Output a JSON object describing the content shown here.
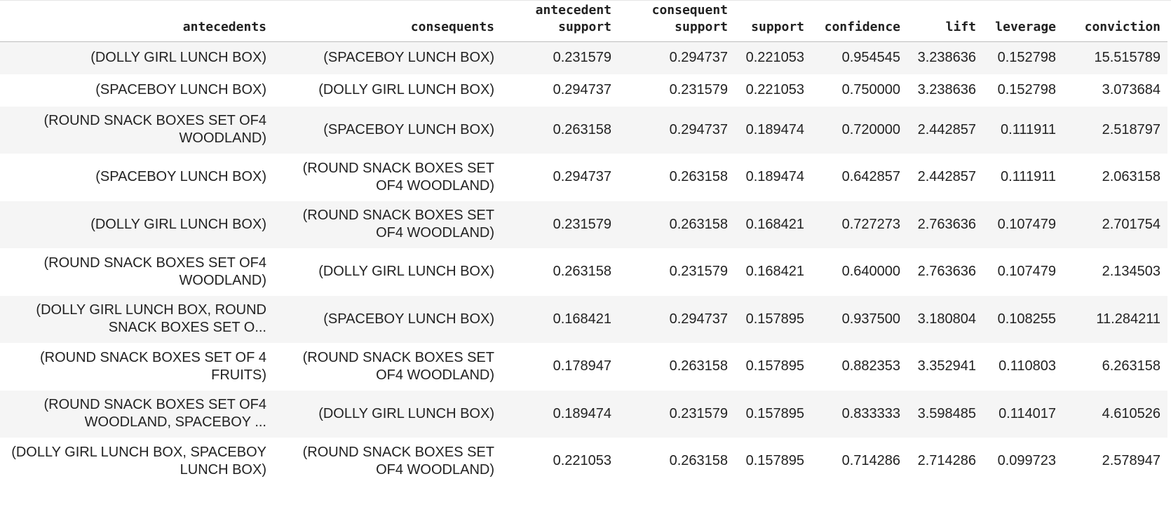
{
  "table": {
    "columns": [
      "antecedents",
      "consequents",
      "antecedent support",
      "consequent support",
      "support",
      "confidence",
      "lift",
      "leverage",
      "conviction"
    ],
    "rows": [
      [
        "(DOLLY GIRL LUNCH BOX)",
        "(SPACEBOY LUNCH BOX)",
        "0.231579",
        "0.294737",
        "0.221053",
        "0.954545",
        "3.238636",
        "0.152798",
        "15.515789"
      ],
      [
        "(SPACEBOY LUNCH BOX)",
        "(DOLLY GIRL LUNCH BOX)",
        "0.294737",
        "0.231579",
        "0.221053",
        "0.750000",
        "3.238636",
        "0.152798",
        "3.073684"
      ],
      [
        "(ROUND SNACK BOXES SET OF4 WOODLAND)",
        "(SPACEBOY LUNCH BOX)",
        "0.263158",
        "0.294737",
        "0.189474",
        "0.720000",
        "2.442857",
        "0.111911",
        "2.518797"
      ],
      [
        "(SPACEBOY LUNCH BOX)",
        "(ROUND SNACK BOXES SET OF4 WOODLAND)",
        "0.294737",
        "0.263158",
        "0.189474",
        "0.642857",
        "2.442857",
        "0.111911",
        "2.063158"
      ],
      [
        "(DOLLY GIRL LUNCH BOX)",
        "(ROUND SNACK BOXES SET OF4 WOODLAND)",
        "0.231579",
        "0.263158",
        "0.168421",
        "0.727273",
        "2.763636",
        "0.107479",
        "2.701754"
      ],
      [
        "(ROUND SNACK BOXES SET OF4 WOODLAND)",
        "(DOLLY GIRL LUNCH BOX)",
        "0.263158",
        "0.231579",
        "0.168421",
        "0.640000",
        "2.763636",
        "0.107479",
        "2.134503"
      ],
      [
        "(DOLLY GIRL LUNCH BOX, ROUND SNACK BOXES SET O...",
        "(SPACEBOY LUNCH BOX)",
        "0.168421",
        "0.294737",
        "0.157895",
        "0.937500",
        "3.180804",
        "0.108255",
        "11.284211"
      ],
      [
        "(ROUND SNACK BOXES SET OF 4 FRUITS)",
        "(ROUND SNACK BOXES SET OF4 WOODLAND)",
        "0.178947",
        "0.263158",
        "0.157895",
        "0.882353",
        "3.352941",
        "0.110803",
        "6.263158"
      ],
      [
        "(ROUND SNACK BOXES SET OF4 WOODLAND, SPACEBOY ...",
        "(DOLLY GIRL LUNCH BOX)",
        "0.189474",
        "0.231579",
        "0.157895",
        "0.833333",
        "3.598485",
        "0.114017",
        "4.610526"
      ],
      [
        "(DOLLY GIRL LUNCH BOX, SPACEBOY LUNCH BOX)",
        "(ROUND SNACK BOXES SET OF4 WOODLAND)",
        "0.221053",
        "0.263158",
        "0.157895",
        "0.714286",
        "2.714286",
        "0.099723",
        "2.578947"
      ]
    ]
  }
}
